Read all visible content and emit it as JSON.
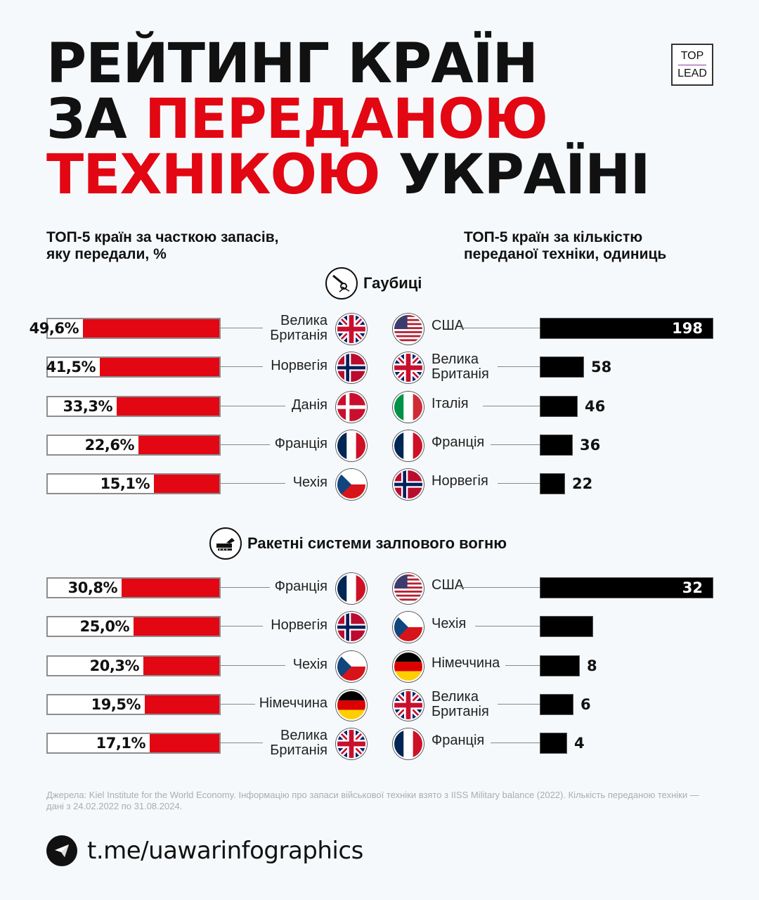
{
  "title": {
    "line1": "РЕЙТИНГ КРАЇН",
    "line2_black": "ЗА",
    "line2_red": "ПЕРЕДАНОЮ",
    "line3_red": "ТЕХНІКОЮ",
    "line3_black": "УКРАЇНІ"
  },
  "logo": {
    "top": "TOP",
    "bottom": "LEAD"
  },
  "subtitles": {
    "left": [
      "ТОП-5 країн за часткою запасів,",
      "яку передали, %"
    ],
    "right": [
      "ТОП-5 країн за кількістю",
      "переданої техніки, одиниць"
    ]
  },
  "colors": {
    "red": "#e30613",
    "black": "#000000",
    "background": "#f6f9fb"
  },
  "chart_data": [
    {
      "type": "bar",
      "section": "Гаубиці",
      "icon": "howitzer-icon",
      "title": "ТОП-5 країн за часткою запасів, яку передали, %",
      "categories": [
        "Велика Британія",
        "Норвегія",
        "Данія",
        "Франція",
        "Чехія"
      ],
      "flags": [
        "gb",
        "no",
        "dk",
        "fr",
        "cz"
      ],
      "values": [
        49.6,
        41.5,
        33.3,
        22.6,
        15.1
      ],
      "labels": [
        "49,6%",
        "41,5%",
        "33,3%",
        "22,6%",
        "15,1%"
      ],
      "xlim": [
        0,
        100
      ]
    },
    {
      "type": "bar",
      "section": "Гаубиці",
      "title": "ТОП-5 країн за кількістю переданої техніки, одиниць",
      "categories": [
        "США",
        "Велика Британія",
        "Італія",
        "Франція",
        "Норвегія"
      ],
      "flags": [
        "us",
        "gb",
        "it",
        "fr",
        "no"
      ],
      "values": [
        198,
        58,
        46,
        36,
        22
      ],
      "labels": [
        "198",
        "58",
        "46",
        "36",
        "22"
      ]
    },
    {
      "type": "bar",
      "section": "Ракетні системи залпового вогню",
      "icon": "rocket-launcher-icon",
      "title": "ТОП-5 країн за часткою запасів, яку передали, %",
      "categories": [
        "Франція",
        "Норвегія",
        "Чехія",
        "Німеччина",
        "Велика Британія"
      ],
      "flags": [
        "fr",
        "no",
        "cz",
        "de",
        "gb"
      ],
      "values": [
        30.8,
        25.0,
        20.3,
        19.5,
        17.1
      ],
      "labels": [
        "30,8%",
        "25,0%",
        "20,3%",
        "19,5%",
        "17,1%"
      ],
      "xlim": [
        0,
        100
      ]
    },
    {
      "type": "bar",
      "section": "Ракетні системи залпового вогню",
      "title": "ТОП-5 країн за кількістю переданої техніки, одиниць",
      "categories": [
        "США",
        "Чехія",
        "Німеччина",
        "Велика Британія",
        "Франція"
      ],
      "flags": [
        "us",
        "cz",
        "de",
        "gb",
        "fr"
      ],
      "values": [
        32,
        12,
        8,
        6,
        4
      ],
      "labels": [
        "32",
        "",
        "8",
        "6",
        "4"
      ]
    }
  ],
  "sources": "Джерела: Kiel Institute for the World Economy. Інформацію про запаси військової техніки взято з IISS Military balance (2022). Кількість переданою техніки — дані з 24.02.2022 по 31.08.2024.",
  "footer": {
    "icon": "telegram-icon",
    "link": "t.me/uawarinfographics"
  }
}
